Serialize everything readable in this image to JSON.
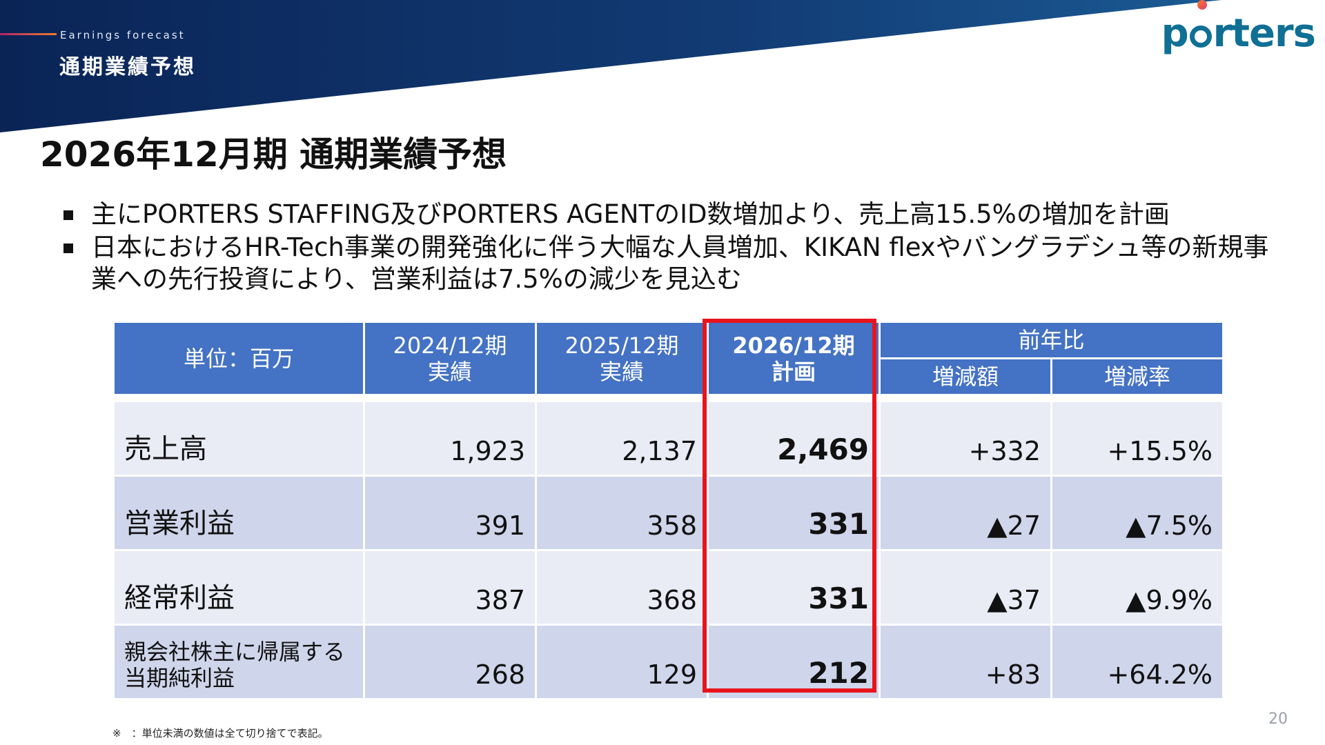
{
  "header": {
    "section_label": "Earnings forecast",
    "section_title": "通期業績予想",
    "logo_text": "porters",
    "banner_color": "#0d2a5a",
    "logo_color": "#0f6f95"
  },
  "page_heading": "2026年12月期 通期業績予想",
  "bullets": [
    "主にPORTERS STAFFING及びPORTERS AGENTのID数増加より、売上高15.5%の増加を計画",
    "日本におけるHR-Tech事業の開発強化に伴う大幅な人員増加、KIKAN flexやバングラデシュ等の新規事業への先行投資により、営業利益は7.5%の減少を見込む"
  ],
  "table": {
    "unit_label": "単位：百万",
    "col_2024_line1": "2024/12期",
    "col_2024_line2": "実績",
    "col_2025_line1": "2025/12期",
    "col_2025_line2": "実績",
    "col_2026_line1": "2026/12期",
    "col_2026_line2": "計画",
    "yoy_label": "前年比",
    "yoy_change_label": "増減額",
    "yoy_rate_label": "増減率",
    "header_color": "#4472c4",
    "highlight_color": "#e8141c",
    "rows": [
      {
        "label": "売上高",
        "v2024": "1,923",
        "v2025": "2,137",
        "v2026": "2,469",
        "change": "+332",
        "rate": "+15.5%"
      },
      {
        "label": "営業利益",
        "v2024": "391",
        "v2025": "358",
        "v2026": "331",
        "change": "▲27",
        "rate": "▲7.5%"
      },
      {
        "label": "経常利益",
        "v2024": "387",
        "v2025": "368",
        "v2026": "331",
        "change": "▲37",
        "rate": "▲9.9%"
      },
      {
        "label_line1": "親会社株主に帰属する",
        "label_line2": "当期純利益",
        "v2024": "268",
        "v2025": "129",
        "v2026": "212",
        "change": "+83",
        "rate": "+64.2%"
      }
    ]
  },
  "footnote": "※　：単位未満の数値は全て切り捨てで表記。",
  "page_number": "20"
}
